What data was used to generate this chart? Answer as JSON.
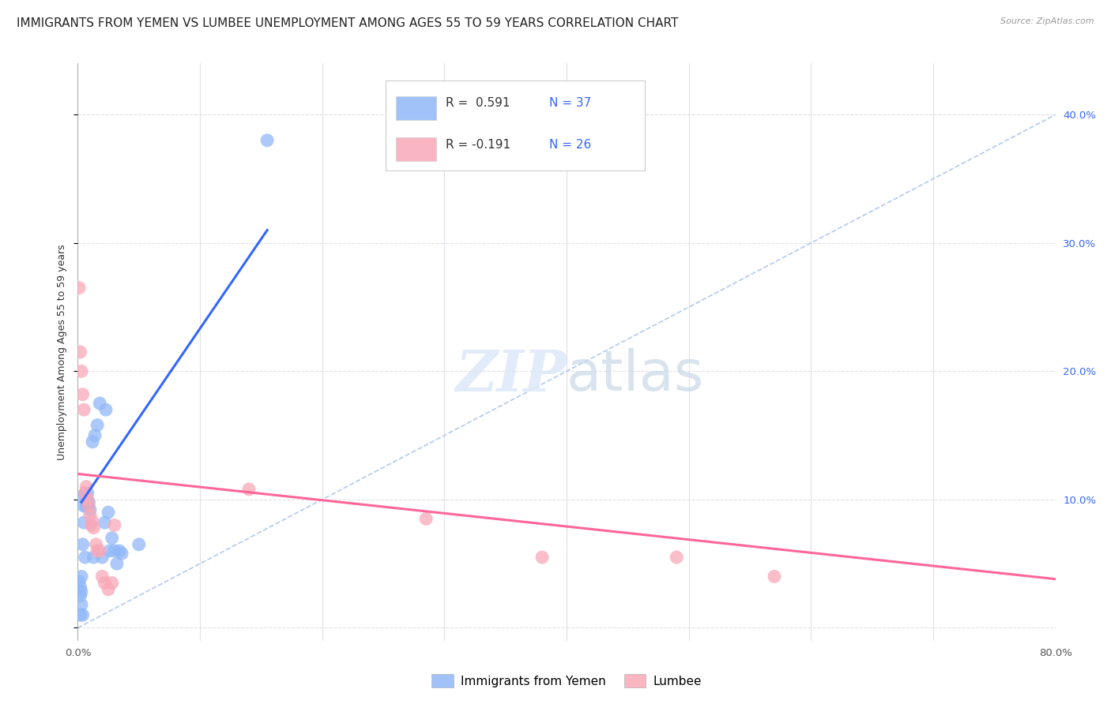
{
  "title": "IMMIGRANTS FROM YEMEN VS LUMBEE UNEMPLOYMENT AMONG AGES 55 TO 59 YEARS CORRELATION CHART",
  "source": "Source: ZipAtlas.com",
  "ylabel": "Unemployment Among Ages 55 to 59 years",
  "xlim": [
    0,
    0.8
  ],
  "ylim": [
    -0.01,
    0.44
  ],
  "xticks": [
    0.0,
    0.8
  ],
  "xticklabels": [
    "0.0%",
    "80.0%"
  ],
  "xticks_minor": [
    0.1,
    0.2,
    0.3,
    0.4,
    0.5,
    0.6,
    0.7
  ],
  "yticks_right": [
    0.1,
    0.2,
    0.3,
    0.4
  ],
  "yticklabels_right": [
    "10.0%",
    "20.0%",
    "30.0%",
    "40.0%"
  ],
  "yticks_grid": [
    0.0,
    0.1,
    0.2,
    0.3,
    0.4
  ],
  "legend_r1": "R =  0.591",
  "legend_n1": "N = 37",
  "legend_r2": "R = -0.191",
  "legend_n2": "N = 26",
  "blue_color": "#90b8f8",
  "pink_color": "#f8a8b8",
  "blue_line_color": "#3366ff",
  "pink_line_color": "#ff6699",
  "diagonal_color": "#aac4ee",
  "blue_scatter": [
    [
      0.001,
      0.036
    ],
    [
      0.002,
      0.025
    ],
    [
      0.002,
      0.032
    ],
    [
      0.002,
      0.01
    ],
    [
      0.003,
      0.04
    ],
    [
      0.003,
      0.028
    ],
    [
      0.003,
      0.018
    ],
    [
      0.004,
      0.065
    ],
    [
      0.004,
      0.01
    ],
    [
      0.004,
      0.102
    ],
    [
      0.005,
      0.095
    ],
    [
      0.005,
      0.082
    ],
    [
      0.006,
      0.105
    ],
    [
      0.006,
      0.055
    ],
    [
      0.007,
      0.1
    ],
    [
      0.007,
      0.095
    ],
    [
      0.008,
      0.105
    ],
    [
      0.008,
      0.095
    ],
    [
      0.009,
      0.098
    ],
    [
      0.01,
      0.092
    ],
    [
      0.012,
      0.145
    ],
    [
      0.013,
      0.055
    ],
    [
      0.014,
      0.15
    ],
    [
      0.016,
      0.158
    ],
    [
      0.018,
      0.175
    ],
    [
      0.02,
      0.055
    ],
    [
      0.022,
      0.082
    ],
    [
      0.023,
      0.17
    ],
    [
      0.025,
      0.09
    ],
    [
      0.026,
      0.06
    ],
    [
      0.028,
      0.07
    ],
    [
      0.03,
      0.06
    ],
    [
      0.032,
      0.05
    ],
    [
      0.034,
      0.06
    ],
    [
      0.036,
      0.058
    ],
    [
      0.05,
      0.065
    ],
    [
      0.155,
      0.38
    ]
  ],
  "pink_scatter": [
    [
      0.001,
      0.265
    ],
    [
      0.002,
      0.215
    ],
    [
      0.003,
      0.2
    ],
    [
      0.004,
      0.182
    ],
    [
      0.005,
      0.17
    ],
    [
      0.006,
      0.105
    ],
    [
      0.007,
      0.11
    ],
    [
      0.008,
      0.1
    ],
    [
      0.009,
      0.095
    ],
    [
      0.01,
      0.088
    ],
    [
      0.011,
      0.08
    ],
    [
      0.012,
      0.083
    ],
    [
      0.013,
      0.078
    ],
    [
      0.015,
      0.065
    ],
    [
      0.016,
      0.06
    ],
    [
      0.018,
      0.06
    ],
    [
      0.02,
      0.04
    ],
    [
      0.022,
      0.035
    ],
    [
      0.025,
      0.03
    ],
    [
      0.028,
      0.035
    ],
    [
      0.03,
      0.08
    ],
    [
      0.14,
      0.108
    ],
    [
      0.285,
      0.085
    ],
    [
      0.38,
      0.055
    ],
    [
      0.49,
      0.055
    ],
    [
      0.57,
      0.04
    ]
  ],
  "blue_line": [
    [
      0.003,
      0.098
    ],
    [
      0.155,
      0.31
    ]
  ],
  "pink_line": [
    [
      0.0,
      0.12
    ],
    [
      0.8,
      0.038
    ]
  ],
  "diagonal_line": [
    [
      0.0,
      0.0
    ],
    [
      0.8,
      0.4
    ]
  ],
  "background_color": "#ffffff",
  "grid_color": "#e0e0e8",
  "title_fontsize": 11,
  "axis_fontsize": 9,
  "tick_fontsize": 9.5
}
